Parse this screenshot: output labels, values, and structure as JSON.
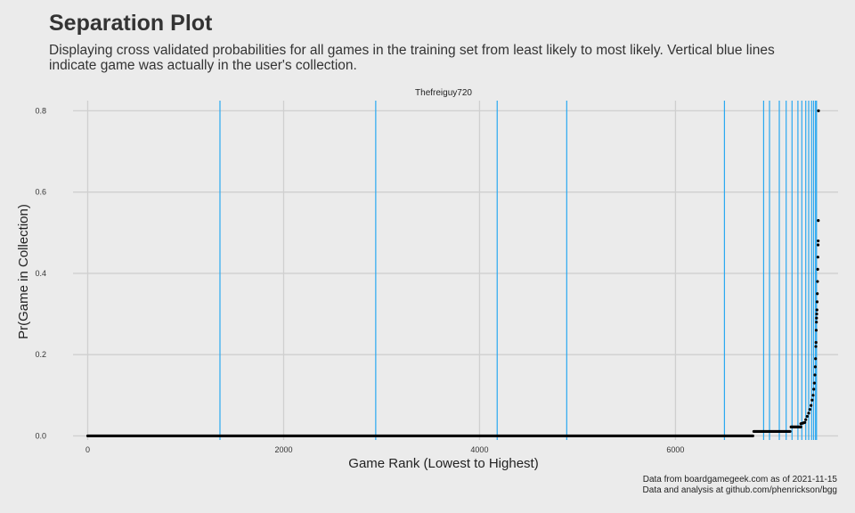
{
  "title": "Separation Plot",
  "subtitle": "Displaying cross validated probabilities for all games in the training set from least likely to most likely. Vertical blue lines indicate game was actually in the user's collection.",
  "caption": {
    "line1": "Data from boardgamegeek.com as of 2021-11-15",
    "line2": "Data and analysis at github.com/phenrickson/bgg"
  },
  "chart_data": {
    "type": "scatter",
    "panel_title": "Thefreiguy720",
    "xlabel": "Game Rank (Lowest to Highest)",
    "ylabel": "Pr(Game in Collection)",
    "xlim": [
      -150,
      7660
    ],
    "ylim": [
      -0.01,
      0.825
    ],
    "x_ticks": [
      0,
      2000,
      4000,
      6000
    ],
    "x_tick_labels": [
      "0",
      "2000",
      "4000",
      "6000"
    ],
    "y_ticks": [
      0.0,
      0.2,
      0.4,
      0.6,
      0.8
    ],
    "y_tick_labels": [
      "0.0",
      "0.2",
      "0.4",
      "0.6",
      "0.8"
    ],
    "grid": true,
    "collection_line_color": "#29a8f0",
    "point_color": "#000000",
    "collection_games_x": [
      1350,
      2940,
      4180,
      4890,
      6500,
      6900,
      6960,
      7060,
      7130,
      7190,
      7250,
      7290,
      7330,
      7360,
      7390,
      7410,
      7430,
      7440
    ],
    "probability_segments": [
      {
        "x_start": 0,
        "x_end": 6790,
        "p_start": 0.0,
        "p_end": 0.0
      },
      {
        "x_start": 6800,
        "x_end": 7170,
        "p_start": 0.011,
        "p_end": 0.011
      },
      {
        "x_start": 7180,
        "x_end": 7280,
        "p_start": 0.022,
        "p_end": 0.022
      },
      {
        "x_start": 7280,
        "x_end": 7320,
        "p_start": 0.03,
        "p_end": 0.033
      }
    ],
    "top_points": [
      {
        "x": 7330,
        "y": 0.04
      },
      {
        "x": 7345,
        "y": 0.048
      },
      {
        "x": 7360,
        "y": 0.056
      },
      {
        "x": 7372,
        "y": 0.065
      },
      {
        "x": 7384,
        "y": 0.075
      },
      {
        "x": 7395,
        "y": 0.088
      },
      {
        "x": 7405,
        "y": 0.1
      },
      {
        "x": 7412,
        "y": 0.115
      },
      {
        "x": 7418,
        "y": 0.13
      },
      {
        "x": 7423,
        "y": 0.15
      },
      {
        "x": 7427,
        "y": 0.17
      },
      {
        "x": 7430,
        "y": 0.19
      },
      {
        "x": 7433,
        "y": 0.22
      },
      {
        "x": 7435,
        "y": 0.23
      },
      {
        "x": 7437,
        "y": 0.26
      },
      {
        "x": 7439,
        "y": 0.28
      },
      {
        "x": 7440,
        "y": 0.29
      },
      {
        "x": 7442,
        "y": 0.3
      },
      {
        "x": 7444,
        "y": 0.31
      },
      {
        "x": 7446,
        "y": 0.33
      },
      {
        "x": 7448,
        "y": 0.35
      },
      {
        "x": 7450,
        "y": 0.38
      },
      {
        "x": 7452,
        "y": 0.41
      },
      {
        "x": 7454,
        "y": 0.44
      },
      {
        "x": 7456,
        "y": 0.47
      },
      {
        "x": 7457,
        "y": 0.48
      },
      {
        "x": 7458,
        "y": 0.53
      },
      {
        "x": 7460,
        "y": 0.8
      }
    ]
  }
}
